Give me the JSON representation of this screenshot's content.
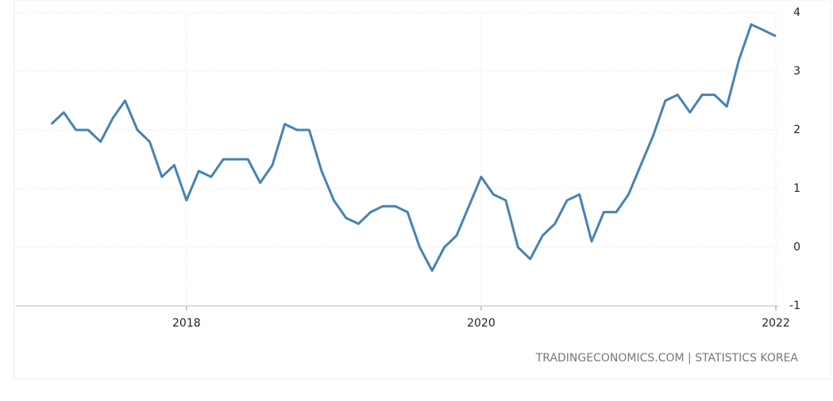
{
  "chart_data": {
    "type": "line",
    "source": "TRADINGECONOMICS.COM | STATISTICS KOREA",
    "series": [
      {
        "color": "#4682b4",
        "x": [
          2017.083,
          2017.167,
          2017.25,
          2017.333,
          2017.417,
          2017.5,
          2017.583,
          2017.667,
          2017.75,
          2017.833,
          2017.917,
          2018,
          2018.083,
          2018.167,
          2018.25,
          2018.333,
          2018.417,
          2018.5,
          2018.583,
          2018.667,
          2018.75,
          2018.833,
          2018.917,
          2019,
          2019.083,
          2019.167,
          2019.25,
          2019.333,
          2019.417,
          2019.5,
          2019.583,
          2019.667,
          2019.75,
          2019.833,
          2019.917,
          2020,
          2020.083,
          2020.167,
          2020.25,
          2020.333,
          2020.417,
          2020.5,
          2020.583,
          2020.667,
          2020.75,
          2020.833,
          2020.917,
          2021,
          2021.083,
          2021.167,
          2021.25,
          2021.333,
          2021.417,
          2021.5,
          2021.583,
          2021.667,
          2021.75,
          2021.833,
          2021.917,
          2022
        ],
        "values": [
          2.1,
          2.3,
          2.0,
          2.0,
          1.8,
          2.2,
          2.5,
          2.0,
          1.8,
          1.2,
          1.4,
          0.8,
          1.3,
          1.2,
          1.5,
          1.5,
          1.5,
          1.1,
          1.4,
          2.1,
          2.0,
          2.0,
          1.3,
          0.8,
          0.5,
          0.4,
          0.6,
          0.7,
          0.7,
          0.6,
          0.0,
          -0.4,
          0.0,
          0.2,
          0.7,
          1.2,
          0.9,
          0.8,
          0.0,
          -0.2,
          0.2,
          0.4,
          0.8,
          0.9,
          0.1,
          0.6,
          0.6,
          0.9,
          1.4,
          1.9,
          2.5,
          2.6,
          2.3,
          2.6,
          2.6,
          2.4,
          3.2,
          3.8,
          3.7,
          3.6
        ]
      }
    ],
    "xlim": [
      2016.95,
      2022.016
    ],
    "xticks": [
      2018,
      2020,
      2022
    ],
    "ylim": [
      -1,
      4
    ],
    "yticks": [
      -1,
      0,
      1,
      2,
      3,
      4
    ],
    "grid": true
  }
}
